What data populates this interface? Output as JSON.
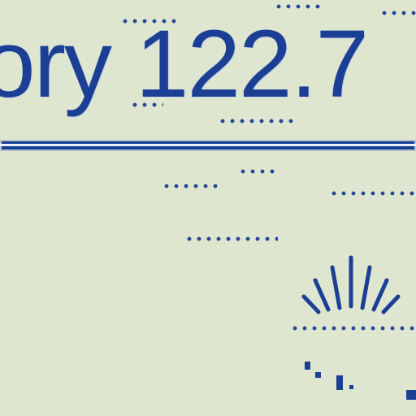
{
  "display": {
    "main_text": "ory 122.7"
  },
  "colors": {
    "background": "#dfe6cf",
    "accent": "#1b3f95"
  },
  "icons": {
    "burst": "sunburst-icon",
    "small_marks": "dot-mark-icon"
  }
}
